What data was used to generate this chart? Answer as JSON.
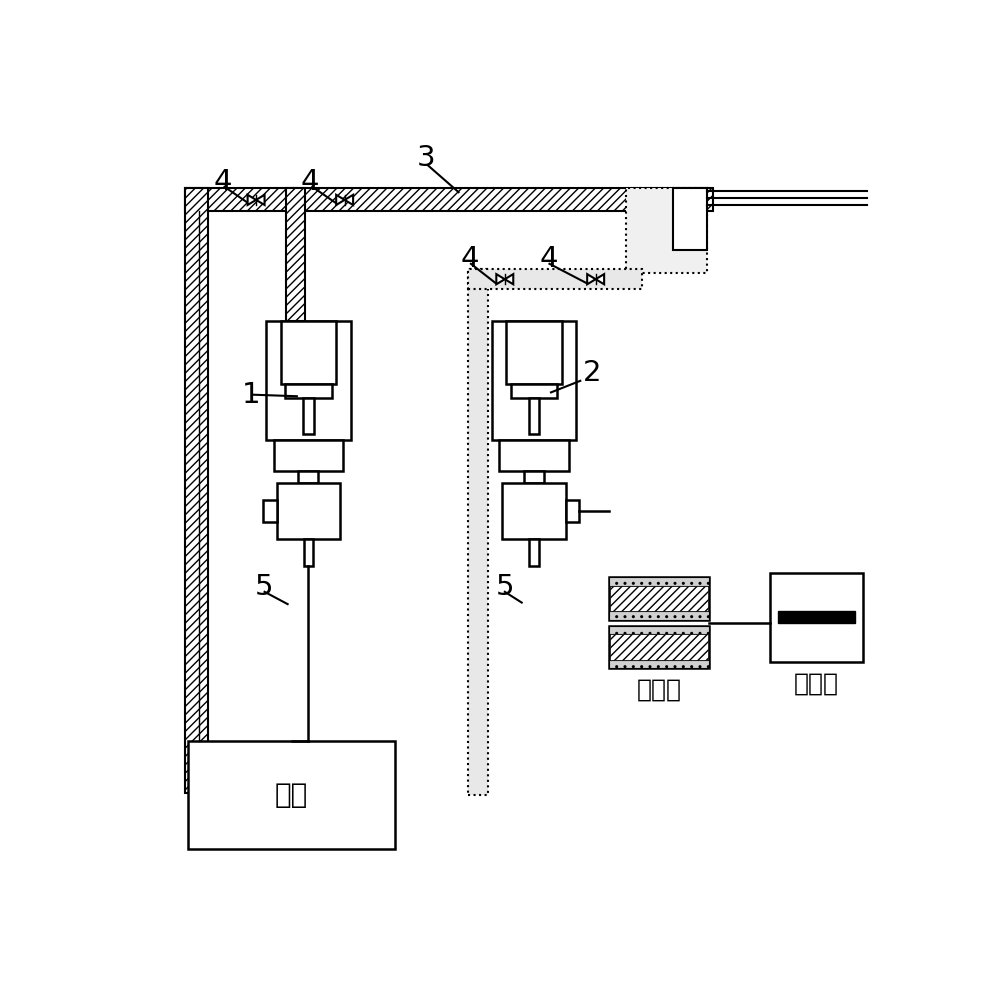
{
  "bg_color": "#ffffff",
  "lc": "#000000",
  "raw_label": "原料",
  "driver_label": "驱动器",
  "controller_label": "控制器",
  "fig_w": 10.0,
  "fig_h": 9.92,
  "dpi": 100
}
